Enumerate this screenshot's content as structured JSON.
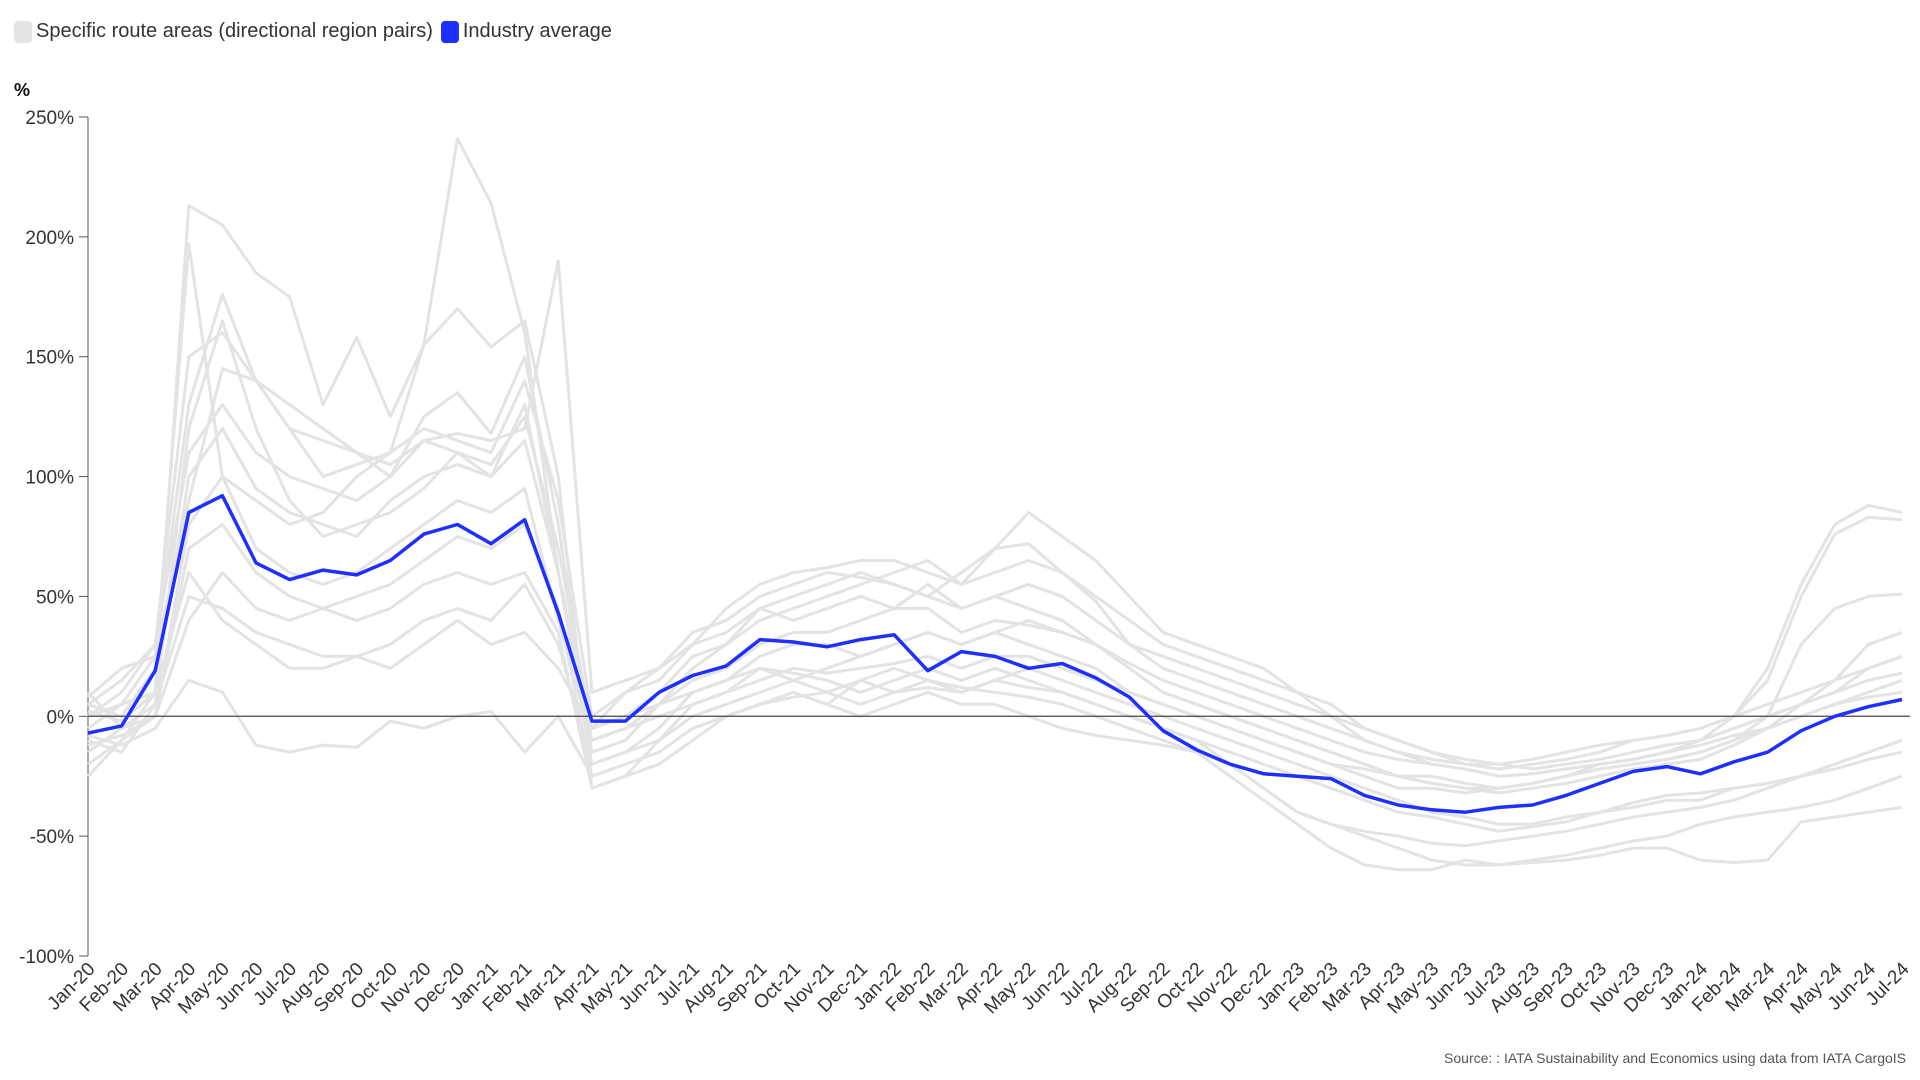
{
  "legend": {
    "items": [
      {
        "label": "Specific route areas (directional region pairs)",
        "color": "#e3e3e3"
      },
      {
        "label": "Industry average",
        "color": "#1f2fff"
      }
    ]
  },
  "source": "Source: : IATA Sustainability and Economics using data from IATA CargoIS",
  "chart_data": {
    "type": "line",
    "title": "",
    "ylabel": "%",
    "xlabel": "",
    "ylim": [
      -100,
      250
    ],
    "yticks": [
      250,
      200,
      150,
      100,
      50,
      0,
      -50,
      -100
    ],
    "ytick_labels": [
      "250%",
      "200%",
      "150%",
      "100%",
      "50%",
      "0%",
      "-50%",
      "-100%"
    ],
    "grid": false,
    "legend_position": "top-left",
    "categories": [
      "Jan-20",
      "Feb-20",
      "Mar-20",
      "Apr-20",
      "May-20",
      "Jun-20",
      "Jul-20",
      "Aug-20",
      "Sep-20",
      "Oct-20",
      "Nov-20",
      "Dec-20",
      "Jan-21",
      "Feb-21",
      "Mar-21",
      "Apr-21",
      "May-21",
      "Jun-21",
      "Jul-21",
      "Aug-21",
      "Sep-21",
      "Oct-21",
      "Nov-21",
      "Dec-21",
      "Jan-22",
      "Feb-22",
      "Mar-22",
      "Apr-22",
      "May-22",
      "Jun-22",
      "Jul-22",
      "Aug-22",
      "Sep-22",
      "Oct-22",
      "Nov-22",
      "Dec-22",
      "Jan-23",
      "Feb-23",
      "Mar-23",
      "Apr-23",
      "May-23",
      "Jun-23",
      "Jul-23",
      "Aug-23",
      "Sep-23",
      "Oct-23",
      "Nov-23",
      "Dec-23",
      "Jan-24",
      "Feb-24",
      "Mar-24",
      "Apr-24",
      "May-24",
      "Jun-24",
      "Jul-24"
    ],
    "series": [
      {
        "group": "Specific route areas (directional region pairs)",
        "color": "#e3e3e3",
        "values": [
          -25,
          -10,
          10,
          213,
          205,
          185,
          175,
          130,
          158,
          125,
          155,
          170,
          154,
          165,
          100,
          -30,
          -25,
          -10,
          5,
          10,
          20,
          18,
          15,
          10,
          15,
          20,
          15,
          20,
          15,
          10,
          5,
          0,
          -5,
          -10,
          -20,
          -30,
          -40,
          -45,
          -48,
          -50,
          -53,
          -54,
          -52,
          -50,
          -48,
          -45,
          -42,
          -40,
          -38,
          -35,
          -30,
          -25,
          -20,
          -15,
          -10
        ]
      },
      {
        "group": "Specific route areas (directional region pairs)",
        "color": "#e3e3e3",
        "values": [
          5,
          0,
          20,
          197,
          100,
          90,
          80,
          85,
          100,
          110,
          155,
          241,
          214,
          160,
          60,
          -5,
          10,
          15,
          30,
          35,
          45,
          50,
          55,
          60,
          55,
          50,
          45,
          50,
          45,
          40,
          30,
          20,
          10,
          5,
          0,
          -5,
          -10,
          -15,
          -20,
          -25,
          -28,
          -30,
          -30,
          -28,
          -25,
          -22,
          -20,
          -18,
          -15,
          -10,
          -5,
          0,
          5,
          10,
          15
        ]
      },
      {
        "group": "Specific route areas (directional region pairs)",
        "color": "#e3e3e3",
        "values": [
          0,
          10,
          30,
          150,
          160,
          140,
          130,
          120,
          110,
          105,
          115,
          118,
          115,
          120,
          190,
          10,
          15,
          20,
          35,
          40,
          50,
          55,
          60,
          58,
          55,
          50,
          60,
          70,
          85,
          75,
          65,
          50,
          35,
          30,
          25,
          20,
          10,
          0,
          -10,
          -15,
          -20,
          -22,
          -25,
          -24,
          -22,
          -20,
          -18,
          -15,
          -10,
          0,
          20,
          55,
          80,
          88,
          85
        ]
      },
      {
        "group": "Specific route areas (directional region pairs)",
        "color": "#e3e3e3",
        "values": [
          -5,
          5,
          25,
          130,
          176,
          140,
          120,
          115,
          110,
          100,
          125,
          135,
          118,
          150,
          80,
          -15,
          -10,
          5,
          20,
          30,
          40,
          45,
          50,
          55,
          60,
          65,
          55,
          70,
          72,
          60,
          48,
          30,
          20,
          15,
          10,
          5,
          0,
          -5,
          -10,
          -15,
          -18,
          -20,
          -20,
          -18,
          -15,
          -12,
          -10,
          -8,
          -5,
          0,
          15,
          50,
          76,
          83,
          82
        ]
      },
      {
        "group": "Specific route areas (directional region pairs)",
        "color": "#e3e3e3",
        "values": [
          -10,
          -15,
          5,
          120,
          165,
          120,
          90,
          75,
          80,
          85,
          95,
          110,
          100,
          130,
          60,
          -20,
          -15,
          -5,
          10,
          15,
          25,
          30,
          30,
          25,
          30,
          35,
          30,
          35,
          30,
          25,
          20,
          10,
          5,
          0,
          -5,
          -10,
          -15,
          -20,
          -25,
          -30,
          -30,
          -32,
          -30,
          -28,
          -25,
          -22,
          -20,
          -18,
          -15,
          -10,
          0,
          30,
          45,
          50,
          51
        ]
      },
      {
        "group": "Specific route areas (directional region pairs)",
        "color": "#e3e3e3",
        "values": [
          10,
          -5,
          0,
          80,
          100,
          70,
          60,
          55,
          60,
          70,
          80,
          90,
          85,
          95,
          40,
          -10,
          -5,
          0,
          5,
          10,
          15,
          20,
          18,
          20,
          22,
          25,
          20,
          25,
          25,
          20,
          15,
          10,
          5,
          0,
          -5,
          -10,
          -15,
          -20,
          -22,
          -25,
          -28,
          -30,
          -32,
          -30,
          -28,
          -25,
          -22,
          -20,
          -18,
          -12,
          -5,
          5,
          15,
          30,
          35
        ]
      },
      {
        "group": "Specific route areas (directional region pairs)",
        "color": "#e3e3e3",
        "values": [
          -8,
          -12,
          -5,
          15,
          10,
          -12,
          -15,
          -12,
          -13,
          -2,
          -5,
          0,
          2,
          -15,
          0,
          -25,
          -20,
          -15,
          -5,
          0,
          5,
          10,
          5,
          0,
          5,
          10,
          5,
          5,
          0,
          -5,
          -8,
          -10,
          -12,
          -15,
          -20,
          -30,
          -40,
          -45,
          -50,
          -55,
          -60,
          -62,
          -62,
          -60,
          -58,
          -55,
          -52,
          -50,
          -45,
          -42,
          -40,
          -38,
          -35,
          -30,
          -25
        ]
      },
      {
        "group": "Specific route areas (directional region pairs)",
        "color": "#e3e3e3",
        "values": [
          0,
          5,
          10,
          60,
          40,
          30,
          20,
          20,
          25,
          20,
          30,
          40,
          30,
          35,
          20,
          -5,
          0,
          5,
          10,
          15,
          20,
          15,
          10,
          15,
          20,
          15,
          12,
          10,
          8,
          5,
          0,
          -5,
          -10,
          -15,
          -25,
          -35,
          -45,
          -55,
          -62,
          -64,
          -64,
          -60,
          -62,
          -61,
          -60,
          -58,
          -55,
          -55,
          -60,
          -61,
          -60,
          -44,
          -42,
          -40,
          -38
        ]
      },
      {
        "group": "Specific route areas (directional region pairs)",
        "color": "#e3e3e3",
        "values": [
          -15,
          -5,
          5,
          50,
          45,
          35,
          30,
          25,
          25,
          30,
          40,
          45,
          40,
          55,
          30,
          -20,
          -15,
          -10,
          0,
          5,
          10,
          15,
          20,
          25,
          30,
          35,
          30,
          35,
          40,
          35,
          30,
          20,
          10,
          5,
          0,
          -5,
          -10,
          -15,
          -20,
          -25,
          -25,
          -28,
          -30,
          -28,
          -25,
          -20,
          -18,
          -15,
          -10,
          -5,
          0,
          5,
          10,
          20,
          25
        ]
      },
      {
        "group": "Specific route areas (directional region pairs)",
        "color": "#e3e3e3",
        "values": [
          5,
          15,
          30,
          110,
          130,
          110,
          100,
          95,
          90,
          100,
          115,
          110,
          105,
          125,
          70,
          -5,
          0,
          10,
          25,
          30,
          45,
          40,
          45,
          50,
          45,
          55,
          45,
          50,
          55,
          50,
          40,
          30,
          25,
          20,
          15,
          10,
          5,
          0,
          -5,
          -10,
          -15,
          -18,
          -20,
          -22,
          -20,
          -18,
          -15,
          -12,
          -10,
          -5,
          0,
          5,
          10,
          15,
          18
        ]
      },
      {
        "group": "Specific route areas (directional region pairs)",
        "color": "#e3e3e3",
        "values": [
          -20,
          -10,
          0,
          40,
          60,
          45,
          40,
          45,
          40,
          45,
          55,
          60,
          55,
          60,
          35,
          -30,
          -25,
          -20,
          -10,
          0,
          5,
          10,
          5,
          15,
          10,
          15,
          10,
          15,
          20,
          15,
          10,
          5,
          0,
          -5,
          -10,
          -15,
          -20,
          -25,
          -30,
          -35,
          -40,
          -42,
          -45,
          -45,
          -42,
          -40,
          -38,
          -35,
          -35,
          -30,
          -28,
          -25,
          -20,
          -15,
          -10
        ]
      },
      {
        "group": "Specific route areas (directional region pairs)",
        "color": "#e3e3e3",
        "values": [
          8,
          20,
          25,
          90,
          145,
          140,
          120,
          100,
          105,
          110,
          120,
          115,
          110,
          140,
          90,
          0,
          10,
          20,
          30,
          45,
          55,
          60,
          62,
          65,
          65,
          60,
          55,
          60,
          65,
          60,
          50,
          40,
          30,
          25,
          20,
          15,
          10,
          5,
          -5,
          -10,
          -15,
          -20,
          -22,
          -20,
          -18,
          -15,
          -10,
          -8,
          -5,
          0,
          5,
          10,
          15,
          20,
          25
        ]
      },
      {
        "group": "Specific route areas (directional region pairs)",
        "color": "#e3e3e3",
        "values": [
          -12,
          -8,
          0,
          70,
          80,
          60,
          50,
          45,
          50,
          55,
          65,
          75,
          70,
          80,
          45,
          -25,
          -20,
          -15,
          -5,
          0,
          5,
          8,
          10,
          5,
          10,
          12,
          10,
          15,
          12,
          10,
          5,
          0,
          -5,
          -10,
          -15,
          -20,
          -25,
          -30,
          -35,
          -40,
          -42,
          -45,
          -48,
          -46,
          -44,
          -40,
          -36,
          -33,
          -32,
          -30,
          -28,
          -25,
          -22,
          -18,
          -15
        ]
      },
      {
        "group": "Specific route areas (directional region pairs)",
        "color": "#e3e3e3",
        "values": [
          2,
          -2,
          10,
          100,
          120,
          95,
          85,
          80,
          75,
          90,
          100,
          105,
          100,
          115,
          60,
          -10,
          -5,
          5,
          15,
          20,
          30,
          35,
          35,
          40,
          45,
          45,
          35,
          40,
          38,
          35,
          30,
          22,
          15,
          10,
          5,
          0,
          -5,
          -10,
          -15,
          -18,
          -20,
          -22,
          -25,
          -24,
          -22,
          -20,
          -18,
          -15,
          -12,
          -8,
          -5,
          0,
          5,
          8,
          10
        ]
      },
      {
        "name": "Industry average",
        "color": "#1f2fff",
        "values": [
          -7,
          -4,
          19,
          85,
          92,
          64,
          57,
          61,
          59,
          65,
          76,
          80,
          72,
          82,
          43,
          -2,
          -2,
          10,
          17,
          21,
          32,
          31,
          29,
          32,
          34,
          19,
          27,
          25,
          20,
          22,
          16,
          8,
          -6,
          -14,
          -20,
          -24,
          -25,
          -26,
          -33,
          -37,
          -39,
          -40,
          -38,
          -37,
          -33,
          -28,
          -23,
          -21,
          -24,
          -19,
          -15,
          -6,
          0,
          4,
          7
        ]
      }
    ]
  }
}
